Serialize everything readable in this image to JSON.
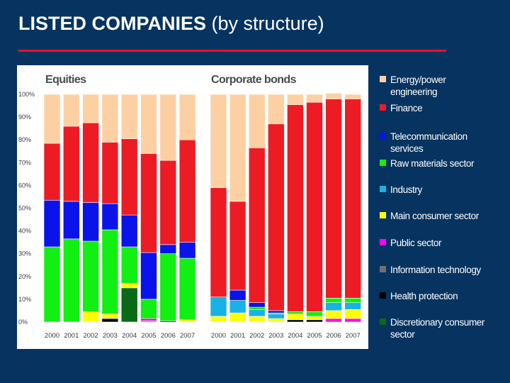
{
  "slide": {
    "title_strong": "LISTED COMPANIES",
    "title_light": "(by structure)"
  },
  "colors": {
    "background": "#06335f",
    "title_rule": "#e8102a"
  },
  "chart_data": {
    "type": "bar",
    "stacked": true,
    "percent": true,
    "ylim": [
      0,
      100
    ],
    "yticks": [
      "0%",
      "10%",
      "20%",
      "30%",
      "40%",
      "50%",
      "60%",
      "70%",
      "80%",
      "90%",
      "100%"
    ],
    "categories": [
      "2000",
      "2001",
      "2002",
      "2003",
      "2004",
      "2005",
      "2006",
      "2007"
    ],
    "legend_position": "right",
    "grid": false,
    "series": [
      {
        "name": "Energy/power engineering",
        "color": "#fdd0a4"
      },
      {
        "name": "Finance",
        "color": "#ed1c24"
      },
      {
        "name": "Telecommunication services",
        "color": "#0a14ea"
      },
      {
        "name": "Raw materials sector",
        "color": "#12ef12"
      },
      {
        "name": "Industry",
        "color": "#19b2e6"
      },
      {
        "name": "Main consumer sector",
        "color": "#ffff00"
      },
      {
        "name": "Public sector",
        "color": "#ff00ff"
      },
      {
        "name": "Information technology",
        "color": "#707070"
      },
      {
        "name": "Health protection",
        "color": "#000000"
      },
      {
        "name": "Discretionary consumer sector",
        "color": "#0a6a16"
      }
    ],
    "panels": [
      {
        "title": "Equities",
        "stack_order": [
          "Discretionary consumer sector",
          "Health protection",
          "Information technology",
          "Public sector",
          "Main consumer sector",
          "Industry",
          "Raw materials sector",
          "Telecommunication services",
          "Finance",
          "Energy/power engineering"
        ],
        "values": {
          "Discretionary consumer sector": [
            0,
            0,
            0,
            0,
            15,
            0,
            0,
            0
          ],
          "Health protection": [
            0,
            0,
            0,
            1.5,
            0,
            0,
            0.5,
            0
          ],
          "Information technology": [
            0,
            0,
            0,
            0,
            0,
            0.5,
            0,
            0
          ],
          "Public sector": [
            0,
            0,
            0,
            0,
            0,
            1,
            0,
            0
          ],
          "Main consumer sector": [
            0,
            0,
            4.5,
            2,
            2,
            0,
            0,
            1
          ],
          "Industry": [
            0,
            0,
            0,
            0,
            0,
            0,
            0,
            0
          ],
          "Raw materials sector": [
            33,
            36.5,
            31,
            37,
            16,
            8.5,
            29.5,
            27
          ],
          "Telecommunication services": [
            20.5,
            16.5,
            17,
            11.5,
            14,
            20.5,
            4,
            7
          ],
          "Finance": [
            25,
            33,
            35,
            27,
            33.5,
            43.5,
            37,
            45
          ],
          "Energy/power engineering": [
            21.5,
            14,
            12.5,
            21,
            19.5,
            26,
            29,
            20
          ]
        }
      },
      {
        "title": "Corporate bonds",
        "stack_order": [
          "Health protection",
          "Public sector",
          "Main consumer sector",
          "Industry",
          "Raw materials sector",
          "Telecommunication services",
          "Finance",
          "Energy/power engineering"
        ],
        "values": {
          "Health protection": [
            0,
            0,
            0,
            0,
            1,
            1,
            0,
            0
          ],
          "Public sector": [
            0,
            0,
            0,
            0,
            0,
            0,
            1.5,
            1.5
          ],
          "Main consumer sector": [
            2.5,
            4,
            2.5,
            1.5,
            2.5,
            1.5,
            3.5,
            4
          ],
          "Industry": [
            8.5,
            5.5,
            3,
            2,
            0,
            0,
            3.5,
            3
          ],
          "Raw materials sector": [
            0,
            0,
            1,
            0.5,
            1,
            2,
            2,
            2
          ],
          "Telecommunication services": [
            0,
            4.5,
            2,
            1,
            0,
            0,
            0,
            0
          ],
          "Finance": [
            48,
            39,
            68,
            82,
            91,
            92,
            87.5,
            87.5
          ],
          "Energy/power engineering": [
            41,
            47,
            23.5,
            13,
            4.5,
            3.5,
            2.5,
            2
          ]
        }
      }
    ]
  }
}
